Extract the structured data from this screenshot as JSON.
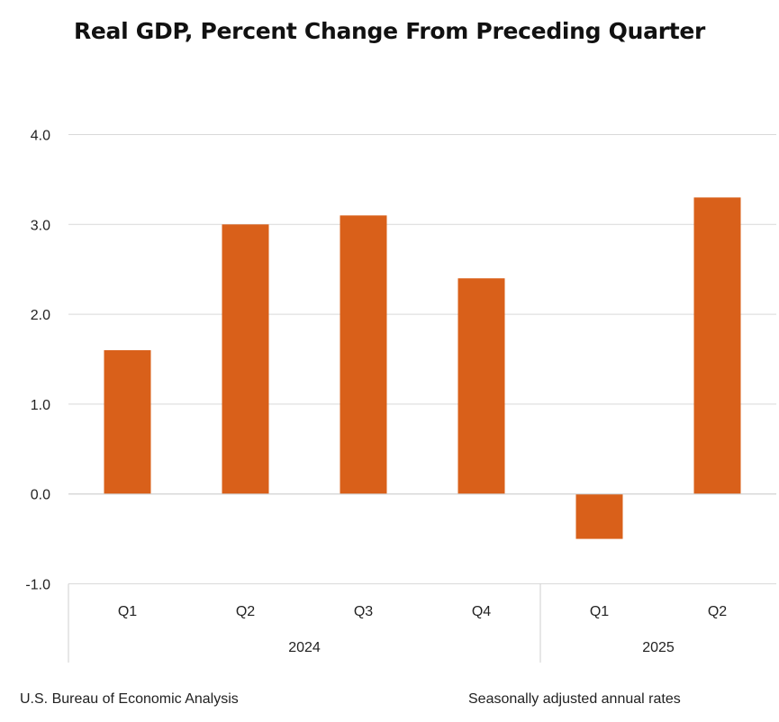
{
  "chart_data": {
    "type": "bar",
    "title": "Real GDP, Percent Change From Preceding Quarter",
    "categories": [
      "Q1",
      "Q2",
      "Q3",
      "Q4",
      "Q1",
      "Q2"
    ],
    "groups": [
      {
        "label": "2024",
        "categories": [
          "Q1",
          "Q2",
          "Q3",
          "Q4"
        ]
      },
      {
        "label": "2025",
        "categories": [
          "Q1",
          "Q2"
        ]
      }
    ],
    "values": [
      1.6,
      3.0,
      3.1,
      2.4,
      -0.5,
      3.3
    ],
    "ylim": [
      -1.0,
      4.0
    ],
    "yticks": [
      "4.0",
      "3.0",
      "2.0",
      "1.0",
      "0.0",
      "-1.0"
    ],
    "ytick_values": [
      4,
      3,
      2,
      1,
      0,
      -1
    ],
    "xlabel": "",
    "ylabel": "",
    "grid": true,
    "bar_color": "#d9601a"
  },
  "footer": {
    "source": "U.S. Bureau of Economic Analysis",
    "note": "Seasonally adjusted annual rates"
  }
}
